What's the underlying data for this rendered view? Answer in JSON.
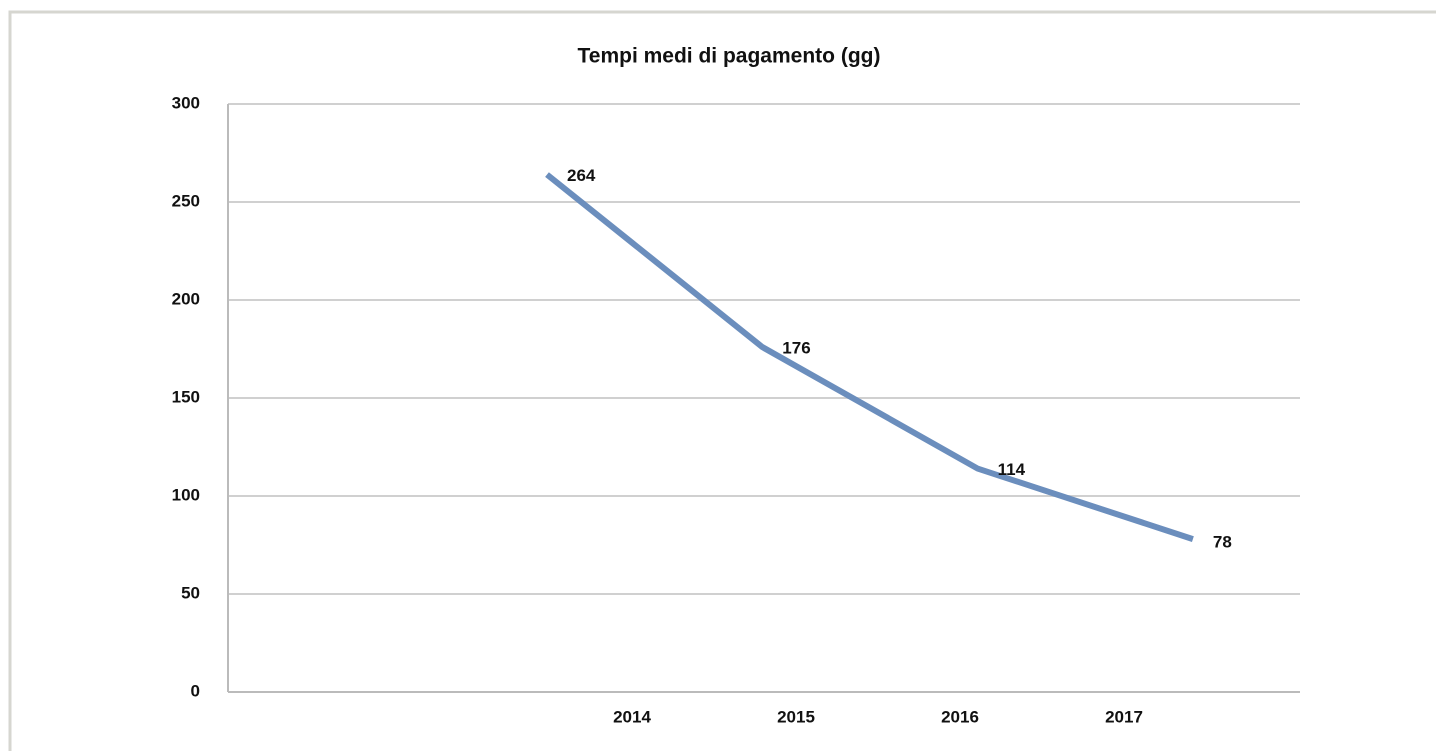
{
  "chart_data": {
    "type": "line",
    "title": "Tempi medi di pagamento (gg)",
    "categories": [
      "2014",
      "2015",
      "2016",
      "2017"
    ],
    "series": [
      {
        "name": "Tempi medi di pagamento (gg)",
        "color": "#6b8ebd",
        "values": [
          264,
          176,
          114,
          78
        ]
      }
    ],
    "ylim": [
      0,
      300
    ],
    "yticks": [
      0,
      50,
      100,
      150,
      200,
      250,
      300
    ],
    "grid": true
  }
}
